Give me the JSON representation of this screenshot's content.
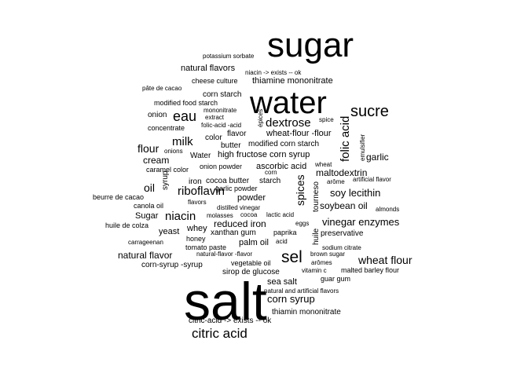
{
  "chart_data": {
    "type": "wordcloud",
    "title": "",
    "text_color": "#000000",
    "background": "#ffffff",
    "words": [
      {
        "text": "salt",
        "weight": 100
      },
      {
        "text": "sugar",
        "weight": 72
      },
      {
        "text": "water",
        "weight": 68
      },
      {
        "text": "citric acid",
        "weight": 32
      },
      {
        "text": "sucre",
        "weight": 30
      },
      {
        "text": "sel",
        "weight": 30
      },
      {
        "text": "eau",
        "weight": 27
      },
      {
        "text": "dextrose",
        "weight": 26
      },
      {
        "text": "riboflavin",
        "weight": 26
      },
      {
        "text": "milk",
        "weight": 24
      },
      {
        "text": "niacin",
        "weight": 24
      },
      {
        "text": "folic acid",
        "weight": 24
      },
      {
        "text": "corn syrup",
        "weight": 23
      },
      {
        "text": "wheat flour",
        "weight": 23
      },
      {
        "text": "flour",
        "weight": 22
      },
      {
        "text": "oil",
        "weight": 22
      },
      {
        "text": "spices",
        "weight": 22
      },
      {
        "text": "vinegar enzymes",
        "weight": 21
      },
      {
        "text": "natural flavor",
        "weight": 20
      },
      {
        "text": "cream",
        "weight": 20
      },
      {
        "text": "garlic",
        "weight": 20
      },
      {
        "text": "soy lecithin",
        "weight": 20
      },
      {
        "text": "maltodextrin",
        "weight": 20
      },
      {
        "text": "reduced iron",
        "weight": 20
      },
      {
        "text": "thiamine mononitrate",
        "weight": 19
      },
      {
        "text": "soybean oil",
        "weight": 19
      },
      {
        "text": "natural flavors",
        "weight": 18
      },
      {
        "text": "high fructose corn syrup",
        "weight": 18
      },
      {
        "text": "wheat-flour -flour",
        "weight": 18
      },
      {
        "text": "ascorbic acid",
        "weight": 18
      },
      {
        "text": "whey",
        "weight": 18
      },
      {
        "text": "yeast",
        "weight": 18
      },
      {
        "text": "palm oil",
        "weight": 18
      },
      {
        "text": "sea salt",
        "weight": 18
      },
      {
        "text": "citric-acid  -> exists  -- ok",
        "weight": 17
      },
      {
        "text": "thiamin mononitrate",
        "weight": 17
      },
      {
        "text": "preservative",
        "weight": 17
      },
      {
        "text": "corn-syrup -syrup",
        "weight": 17
      },
      {
        "text": "xanthan gum",
        "weight": 17
      },
      {
        "text": "powder",
        "weight": 17
      },
      {
        "text": "Sugar",
        "weight": 17
      },
      {
        "text": "butter",
        "weight": 17
      },
      {
        "text": "color",
        "weight": 17
      },
      {
        "text": "flavor",
        "weight": 17
      },
      {
        "text": "onion",
        "weight": 16
      },
      {
        "text": "syrup",
        "weight": 16
      },
      {
        "text": "iron",
        "weight": 16
      },
      {
        "text": "cocoa butter",
        "weight": 16
      },
      {
        "text": "starch",
        "weight": 16
      },
      {
        "text": "corn starch",
        "weight": 16
      },
      {
        "text": "modified corn starch",
        "weight": 16
      },
      {
        "text": "Water",
        "weight": 16
      },
      {
        "text": "onion powder",
        "weight": 16
      },
      {
        "text": "sirop de glucose",
        "weight": 16
      },
      {
        "text": "tourneso",
        "weight": 16
      },
      {
        "text": "huile",
        "weight": 16
      },
      {
        "text": "paprika",
        "weight": 15
      },
      {
        "text": "honey",
        "weight": 15
      },
      {
        "text": "cheese culture",
        "weight": 15
      },
      {
        "text": "modified food starch",
        "weight": 15
      },
      {
        "text": "concentrate",
        "weight": 15
      },
      {
        "text": "garlic powder",
        "weight": 15
      },
      {
        "text": "caramel color",
        "weight": 15
      },
      {
        "text": "canola oil",
        "weight": 15
      },
      {
        "text": "beurre de cacao",
        "weight": 15
      },
      {
        "text": "huile de colza",
        "weight": 15
      },
      {
        "text": "tomato paste",
        "weight": 15
      },
      {
        "text": "vegetable oil",
        "weight": 15
      },
      {
        "text": "guar gum",
        "weight": 15
      },
      {
        "text": "natural and artificial flavors",
        "weight": 14
      },
      {
        "text": "malted barley flour",
        "weight": 14
      },
      {
        "text": "niacin  -> exists  -- ok",
        "weight": 14
      },
      {
        "text": "potassium sorbate",
        "weight": 14
      },
      {
        "text": "pâte de cacao",
        "weight": 14
      },
      {
        "text": "folic-acid -acid",
        "weight": 14
      },
      {
        "text": "extract",
        "weight": 14
      },
      {
        "text": "mononitrate",
        "weight": 14
      },
      {
        "text": "flavors",
        "weight": 14
      },
      {
        "text": "distilled vinegar",
        "weight": 14
      },
      {
        "text": "molasses",
        "weight": 14
      },
      {
        "text": "cocoa",
        "weight": 14
      },
      {
        "text": "lactic acid",
        "weight": 14
      },
      {
        "text": "eggs",
        "weight": 14
      },
      {
        "text": "natural-flavor -flavor",
        "weight": 14
      },
      {
        "text": "acid",
        "weight": 14
      },
      {
        "text": "brown sugar",
        "weight": 14
      },
      {
        "text": "arômes",
        "weight": 14
      },
      {
        "text": "vitamin c",
        "weight": 14
      },
      {
        "text": "sodium citrate",
        "weight": 14
      },
      {
        "text": "carrageenan",
        "weight": 14
      },
      {
        "text": "onions",
        "weight": 14
      },
      {
        "text": "épices",
        "weight": 14
      },
      {
        "text": "spice",
        "weight": 14
      },
      {
        "text": "emulsifier",
        "weight": 14
      },
      {
        "text": "wheat",
        "weight": 14
      },
      {
        "text": "arôme",
        "weight": 14
      },
      {
        "text": "artificial flavor",
        "weight": 14
      },
      {
        "text": "corn",
        "weight": 14
      },
      {
        "text": "almonds",
        "weight": 14
      }
    ]
  }
}
